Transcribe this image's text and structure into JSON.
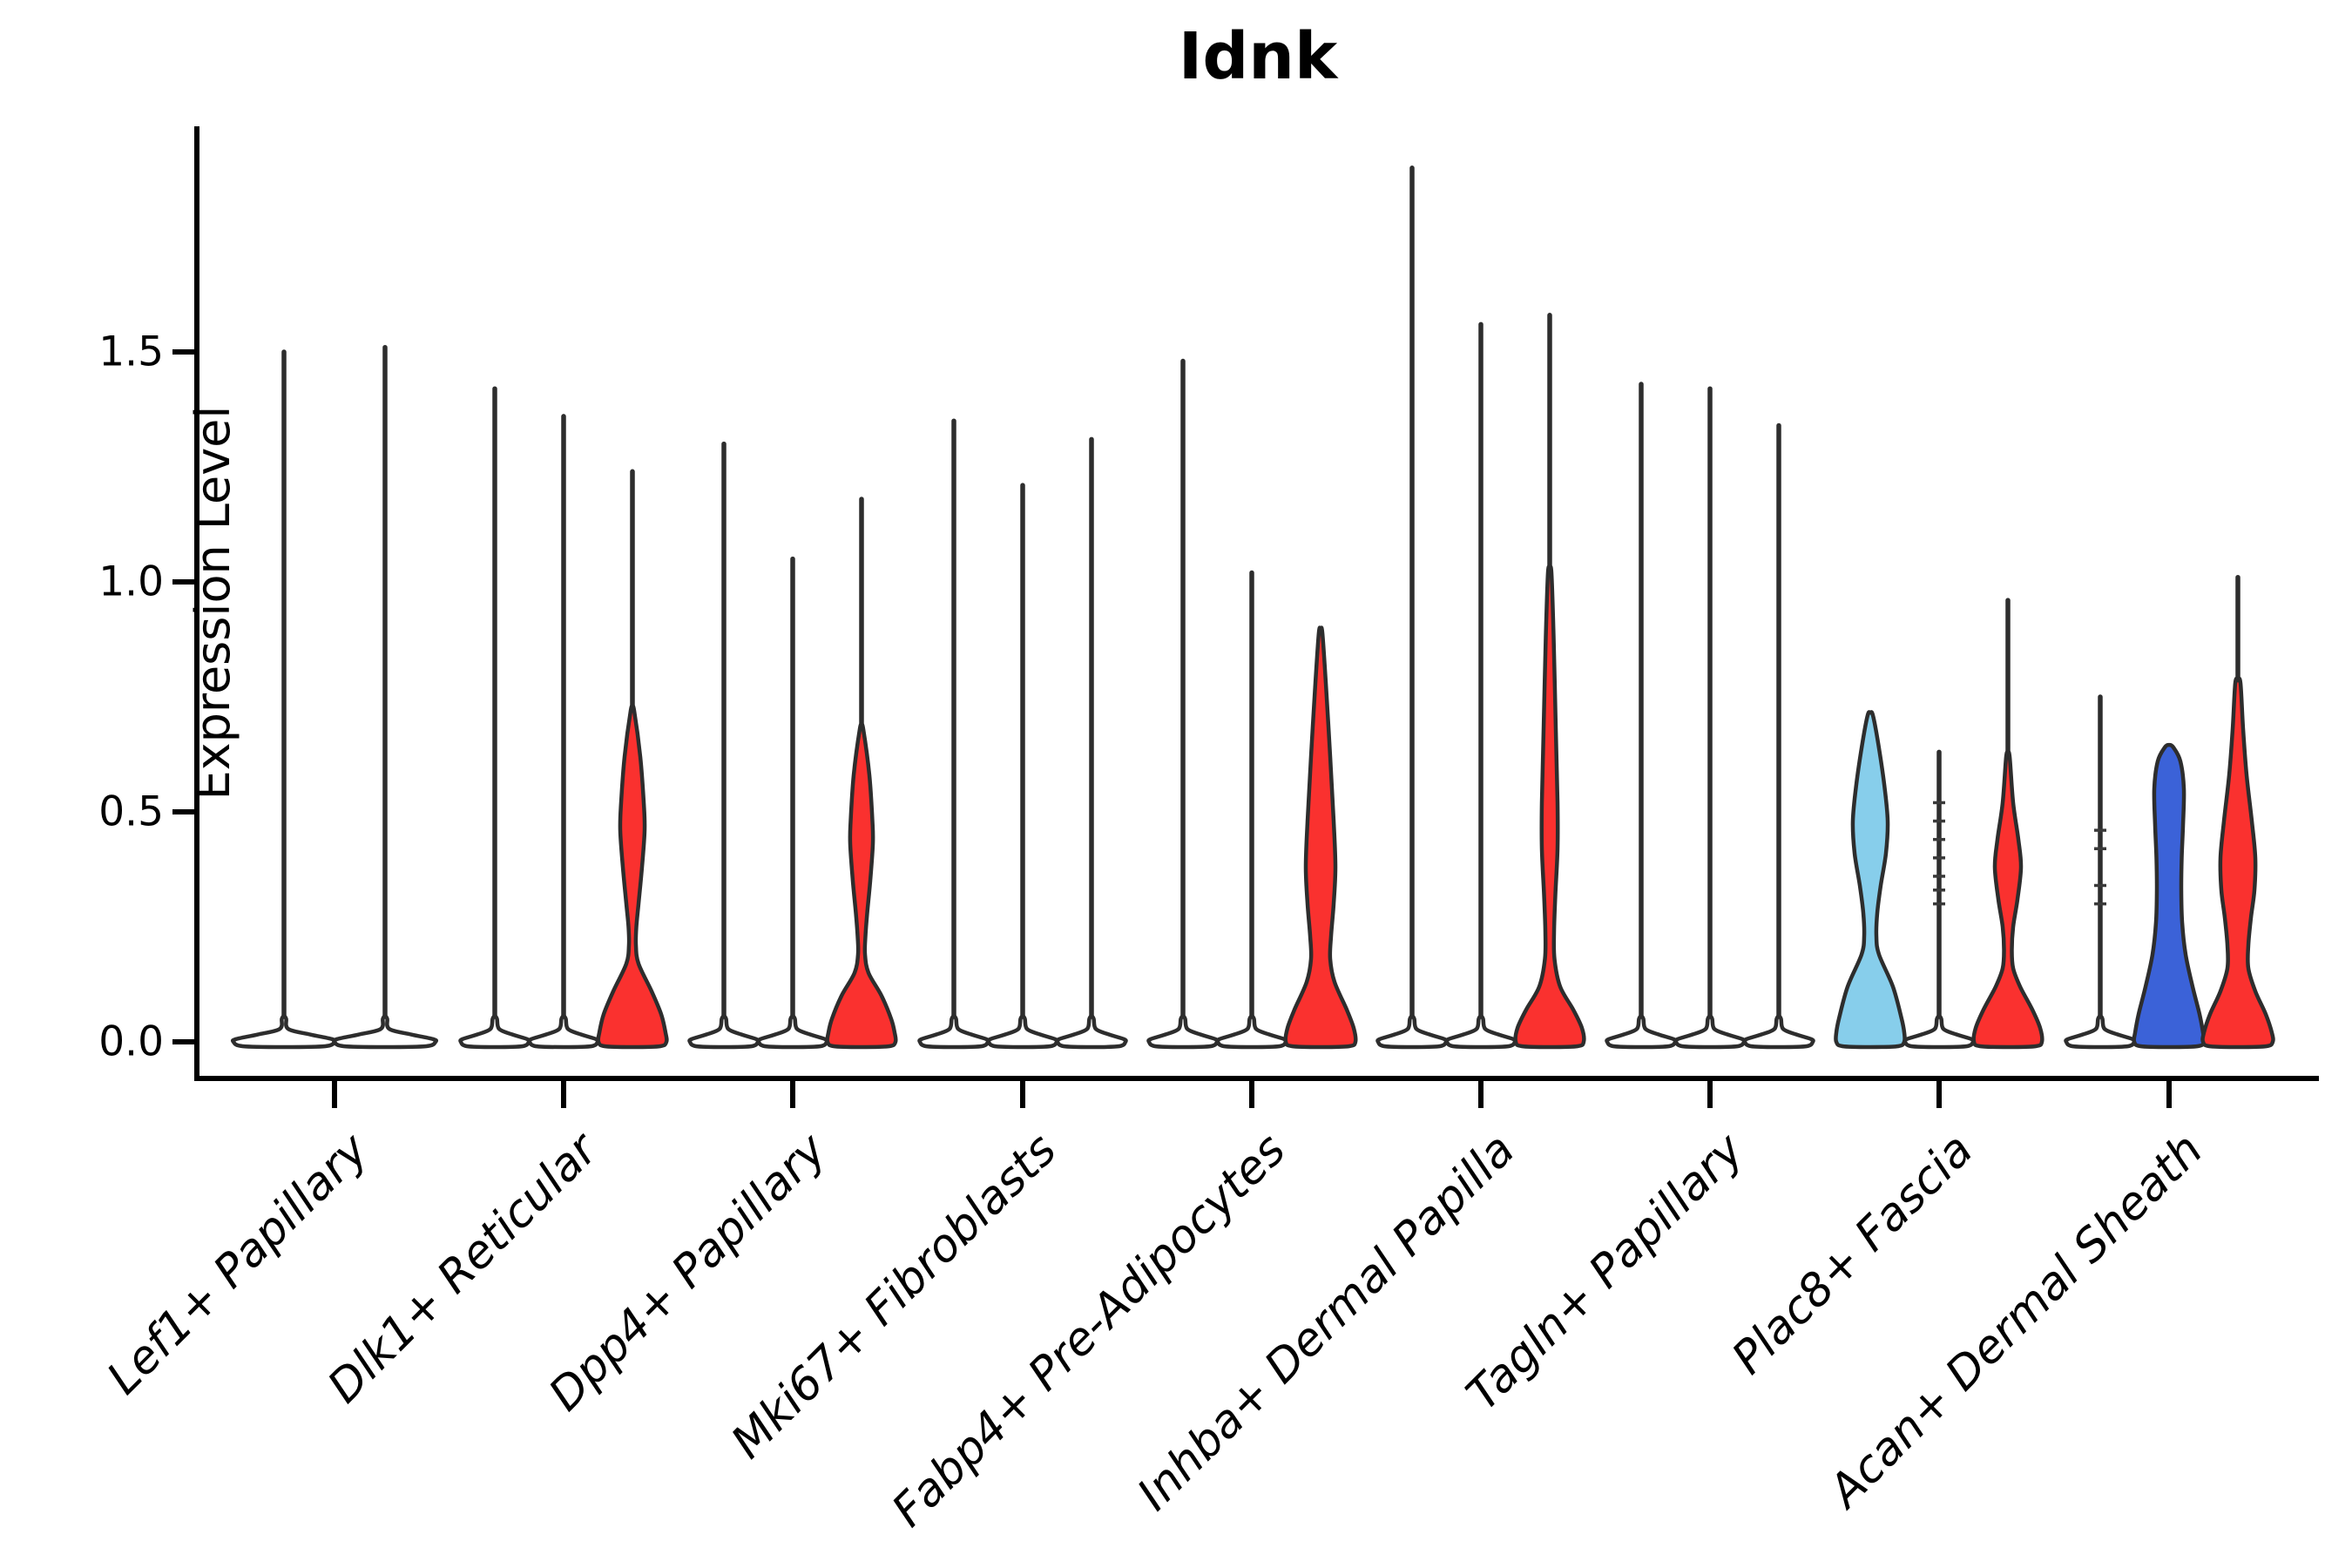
{
  "chart_data": {
    "type": "violin",
    "title": "Idnk",
    "ylabel": "Expression Level",
    "grid": false,
    "legend": "none",
    "ylim": [
      -0.08,
      1.99
    ],
    "yticks": [
      {
        "value": 0.0,
        "label": "0.0"
      },
      {
        "value": 0.5,
        "label": "0.5"
      },
      {
        "value": 1.0,
        "label": "1.0"
      },
      {
        "value": 1.5,
        "label": "1.5"
      }
    ],
    "categories": [
      "Lef1+ Papillary",
      "Dlk1+ Reticular",
      "Dpp4+ Papillary",
      "Mki67+ Fibroblasts",
      "Fabp4+ Pre-Adipocytes",
      "Inhba+ Dermal Papilla",
      "Tagln+ Papillary",
      "Plac8+ Fascia",
      "Acan+ Dermal Sheath"
    ],
    "colors": {
      "red": "#fa312f",
      "skyblue": "#87ceeb",
      "blue": "#3b62d8",
      "white": "#ffffff",
      "outline": "#2d2d2d",
      "axis": "#000000"
    },
    "groups": [
      {
        "category": "Lef1+ Papillary",
        "center": 384,
        "violins": [
          {
            "x": 326,
            "color": "white",
            "max": 1.5,
            "profile": [
              [
                0.05,
                2.5
              ],
              [
                0.028,
                5
              ],
              [
                0.016,
                30
              ],
              [
                0.006,
                55
              ],
              [
                0,
                58
              ]
            ]
          },
          {
            "x": 442,
            "color": "white",
            "max": 1.51,
            "profile": [
              [
                0.05,
                2.5
              ],
              [
                0.028,
                5
              ],
              [
                0.016,
                30
              ],
              [
                0.006,
                55
              ],
              [
                0,
                58
              ]
            ]
          }
        ]
      },
      {
        "category": "Dlk1+ Reticular",
        "center": 647,
        "violins": [
          {
            "x": 568,
            "color": "white",
            "max": 1.42,
            "profile": [
              [
                0.05,
                2.5
              ],
              [
                0.028,
                5
              ],
              [
                0.016,
                20
              ],
              [
                0.006,
                37
              ],
              [
                0,
                39
              ]
            ]
          },
          {
            "x": 647,
            "color": "white",
            "max": 1.36,
            "profile": [
              [
                0.05,
                2.5
              ],
              [
                0.028,
                5
              ],
              [
                0.016,
                20
              ],
              [
                0.006,
                37
              ],
              [
                0,
                39
              ]
            ]
          },
          {
            "x": 726,
            "color": "red",
            "max": 1.24,
            "profile": [
              [
                0.72,
                2
              ],
              [
                0.62,
                9
              ],
              [
                0.52,
                13
              ],
              [
                0.46,
                14
              ],
              [
                0.38,
                11
              ],
              [
                0.3,
                7
              ],
              [
                0.25,
                4.5
              ],
              [
                0.21,
                4
              ],
              [
                0.17,
                7
              ],
              [
                0.11,
                22
              ],
              [
                0.06,
                33
              ],
              [
                0.02,
                38
              ],
              [
                0,
                39
              ]
            ]
          }
        ]
      },
      {
        "category": "Dpp4+ Papillary",
        "center": 910,
        "violins": [
          {
            "x": 831,
            "color": "white",
            "max": 1.3,
            "profile": [
              [
                0.05,
                2.5
              ],
              [
                0.028,
                5
              ],
              [
                0.016,
                20
              ],
              [
                0.006,
                37
              ],
              [
                0,
                39
              ]
            ]
          },
          {
            "x": 910,
            "color": "white",
            "max": 1.05,
            "profile": [
              [
                0.05,
                2.5
              ],
              [
                0.028,
                5
              ],
              [
                0.016,
                20
              ],
              [
                0.006,
                37
              ],
              [
                0,
                39
              ]
            ]
          },
          {
            "x": 989,
            "color": "red",
            "max": 1.18,
            "profile": [
              [
                0.68,
                2
              ],
              [
                0.58,
                9
              ],
              [
                0.48,
                12.5
              ],
              [
                0.43,
                13
              ],
              [
                0.35,
                10
              ],
              [
                0.28,
                6.5
              ],
              [
                0.23,
                4.5
              ],
              [
                0.19,
                4
              ],
              [
                0.15,
                8
              ],
              [
                0.1,
                23
              ],
              [
                0.05,
                34
              ],
              [
                0.02,
                38
              ],
              [
                0,
                39
              ]
            ]
          }
        ]
      },
      {
        "category": "Mki67+ Fibroblasts",
        "center": 1174,
        "violins": [
          {
            "x": 1095,
            "color": "white",
            "max": 1.35,
            "profile": [
              [
                0.05,
                2.5
              ],
              [
                0.028,
                5
              ],
              [
                0.016,
                20
              ],
              [
                0.006,
                37
              ],
              [
                0,
                39
              ]
            ]
          },
          {
            "x": 1174,
            "color": "white",
            "max": 1.21,
            "profile": [
              [
                0.05,
                2.5
              ],
              [
                0.028,
                5
              ],
              [
                0.016,
                20
              ],
              [
                0.006,
                37
              ],
              [
                0,
                39
              ]
            ]
          },
          {
            "x": 1253,
            "color": "white",
            "max": 1.31,
            "profile": [
              [
                0.05,
                2.5
              ],
              [
                0.028,
                5
              ],
              [
                0.016,
                20
              ],
              [
                0.006,
                37
              ],
              [
                0,
                39
              ]
            ]
          }
        ]
      },
      {
        "category": "Fabp4+ Pre-Adipocytes",
        "center": 1437,
        "violins": [
          {
            "x": 1358,
            "color": "white",
            "max": 1.48,
            "profile": [
              [
                0.05,
                2.5
              ],
              [
                0.028,
                5
              ],
              [
                0.016,
                20
              ],
              [
                0.006,
                37
              ],
              [
                0,
                39
              ]
            ]
          },
          {
            "x": 1437,
            "color": "white",
            "max": 1.02,
            "profile": [
              [
                0.05,
                2.5
              ],
              [
                0.028,
                5
              ],
              [
                0.016,
                20
              ],
              [
                0.006,
                37
              ],
              [
                0,
                39
              ]
            ]
          },
          {
            "x": 1516,
            "color": "red",
            "max": 0.89,
            "profile": [
              [
                0.89,
                2
              ],
              [
                0.78,
                6
              ],
              [
                0.62,
                11
              ],
              [
                0.48,
                15
              ],
              [
                0.38,
                17
              ],
              [
                0.3,
                15
              ],
              [
                0.23,
                12
              ],
              [
                0.18,
                11
              ],
              [
                0.13,
                16
              ],
              [
                0.07,
                30
              ],
              [
                0.03,
                38
              ],
              [
                0,
                40
              ]
            ]
          }
        ]
      },
      {
        "category": "Inhba+ Dermal Papilla",
        "center": 1700,
        "violins": [
          {
            "x": 1621,
            "color": "white",
            "max": 1.9,
            "profile": [
              [
                0.05,
                2.5
              ],
              [
                0.028,
                5
              ],
              [
                0.016,
                20
              ],
              [
                0.006,
                37
              ],
              [
                0,
                39
              ]
            ]
          },
          {
            "x": 1700,
            "color": "white",
            "max": 1.56,
            "profile": [
              [
                0.05,
                2.5
              ],
              [
                0.028,
                5
              ],
              [
                0.016,
                20
              ],
              [
                0.006,
                37
              ],
              [
                0,
                39
              ]
            ]
          },
          {
            "x": 1779,
            "color": "red",
            "max": 1.58,
            "profile": [
              [
                1.02,
                2
              ],
              [
                0.88,
                4.5
              ],
              [
                0.68,
                7
              ],
              [
                0.52,
                9
              ],
              [
                0.42,
                9
              ],
              [
                0.32,
                6.5
              ],
              [
                0.24,
                5
              ],
              [
                0.18,
                5.5
              ],
              [
                0.12,
                12
              ],
              [
                0.07,
                27
              ],
              [
                0.03,
                37
              ],
              [
                0,
                39
              ]
            ]
          }
        ]
      },
      {
        "category": "Tagln+ Papillary",
        "center": 1963,
        "violins": [
          {
            "x": 1884,
            "color": "white",
            "max": 1.43,
            "profile": [
              [
                0.05,
                2.5
              ],
              [
                0.028,
                5
              ],
              [
                0.016,
                20
              ],
              [
                0.006,
                37
              ],
              [
                0,
                39
              ]
            ]
          },
          {
            "x": 1963,
            "color": "white",
            "max": 1.42,
            "profile": [
              [
                0.05,
                2.5
              ],
              [
                0.028,
                5
              ],
              [
                0.016,
                20
              ],
              [
                0.006,
                37
              ],
              [
                0,
                39
              ]
            ]
          },
          {
            "x": 2042,
            "color": "white",
            "max": 1.34,
            "profile": [
              [
                0.05,
                2.5
              ],
              [
                0.028,
                5
              ],
              [
                0.016,
                20
              ],
              [
                0.006,
                37
              ],
              [
                0,
                39
              ]
            ]
          }
        ]
      },
      {
        "category": "Plac8+ Fascia",
        "center": 2226,
        "violins": [
          {
            "x": 2147,
            "color": "skyblue",
            "max": 0.71,
            "profile": [
              [
                0.71,
                3
              ],
              [
                0.65,
                9
              ],
              [
                0.56,
                16
              ],
              [
                0.48,
                20
              ],
              [
                0.41,
                18
              ],
              [
                0.34,
                12
              ],
              [
                0.28,
                8
              ],
              [
                0.23,
                7
              ],
              [
                0.19,
                10
              ],
              [
                0.12,
                26
              ],
              [
                0.05,
                36
              ],
              [
                0.02,
                39
              ],
              [
                0,
                39
              ]
            ]
          },
          {
            "x": 2226,
            "color": "white",
            "max": 0.63,
            "dashes": [
              0.3,
              0.33,
              0.36,
              0.4,
              0.44,
              0.48,
              0.52
            ],
            "profile": [
              [
                0.05,
                2.5
              ],
              [
                0.028,
                5
              ],
              [
                0.016,
                20
              ],
              [
                0.006,
                37
              ],
              [
                0,
                39
              ]
            ]
          },
          {
            "x": 2305,
            "color": "red",
            "max": 0.96,
            "profile": [
              [
                0.62,
                2
              ],
              [
                0.52,
                6
              ],
              [
                0.44,
                12
              ],
              [
                0.38,
                15
              ],
              [
                0.31,
                11
              ],
              [
                0.25,
                6
              ],
              [
                0.2,
                4.5
              ],
              [
                0.16,
                6
              ],
              [
                0.12,
                14
              ],
              [
                0.07,
                28
              ],
              [
                0.03,
                37
              ],
              [
                0,
                39
              ]
            ]
          }
        ]
      },
      {
        "category": "Acan+ Dermal Sheath",
        "center": 2490,
        "violins": [
          {
            "x": 2411,
            "color": "white",
            "max": 0.75,
            "dashes": [
              0.3,
              0.34,
              0.42,
              0.46
            ],
            "profile": [
              [
                0.05,
                2.5
              ],
              [
                0.028,
                5
              ],
              [
                0.016,
                20
              ],
              [
                0.006,
                37
              ],
              [
                0,
                39
              ]
            ]
          },
          {
            "x": 2490,
            "color": "blue",
            "max": 0.64,
            "profile": [
              [
                0.64,
                5
              ],
              [
                0.61,
                13
              ],
              [
                0.55,
                17
              ],
              [
                0.47,
                16
              ],
              [
                0.4,
                14.5
              ],
              [
                0.33,
                14
              ],
              [
                0.26,
                15
              ],
              [
                0.19,
                19
              ],
              [
                0.12,
                27
              ],
              [
                0.06,
                35
              ],
              [
                0.02,
                39
              ],
              [
                0,
                40
              ]
            ]
          },
          {
            "x": 2569,
            "color": "red",
            "max": 1.01,
            "profile": [
              [
                0.78,
                3
              ],
              [
                0.68,
                6
              ],
              [
                0.58,
                10
              ],
              [
                0.48,
                16
              ],
              [
                0.4,
                20
              ],
              [
                0.33,
                19
              ],
              [
                0.27,
                15
              ],
              [
                0.21,
                12
              ],
              [
                0.16,
                12
              ],
              [
                0.11,
                20
              ],
              [
                0.06,
                32
              ],
              [
                0.02,
                39
              ],
              [
                0,
                40
              ]
            ]
          }
        ]
      }
    ]
  }
}
